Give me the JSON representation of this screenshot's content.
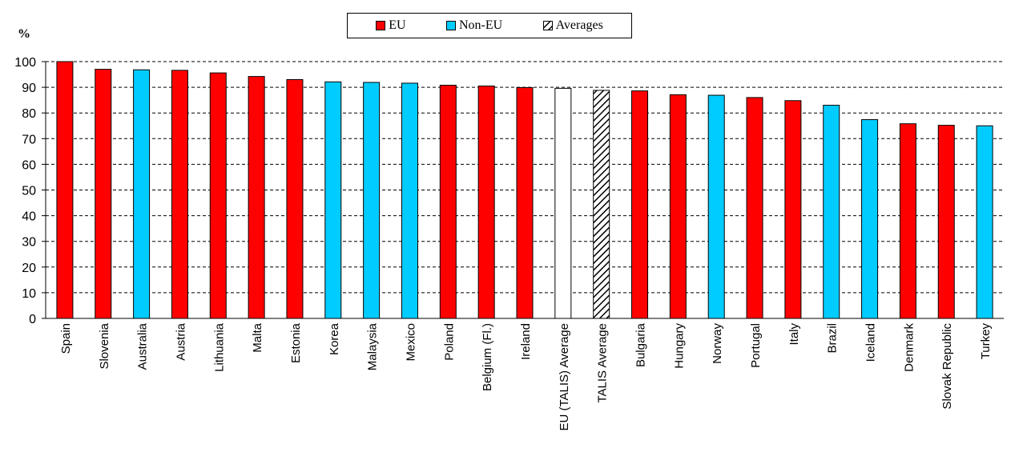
{
  "legend": {
    "eu_label": "EU",
    "noneu_label": "Non-EU",
    "avg_label": "Averages"
  },
  "colors": {
    "eu": "#ff0000",
    "noneu": "#00ccff",
    "avg_eu": "#ffffff",
    "avg_talis": "hatched-black"
  },
  "chart_data": {
    "type": "bar",
    "title": "",
    "xlabel": "",
    "ylabel": "%",
    "ylim": [
      0,
      100
    ],
    "yticks": [
      0,
      10,
      20,
      30,
      40,
      50,
      60,
      70,
      80,
      90,
      100
    ],
    "grid": "horizontal dashed",
    "legend_placement": "top-center",
    "categories": [
      "Spain",
      "Slovenia",
      "Australia",
      "Austria",
      "Lithuania",
      "Malta",
      "Estonia",
      "Korea",
      "Malaysia",
      "Mexico",
      "Poland",
      "Belgium (Fl.)",
      "Ireland",
      "EU (TALIS) Average",
      "TALIS Average",
      "Bulgaria",
      "Hungary",
      "Norway",
      "Portugal",
      "Italy",
      "Brazil",
      "Iceland",
      "Denmark",
      "Slovak Republic",
      "Turkey"
    ],
    "values": [
      100,
      97,
      96.8,
      96.6,
      95.6,
      94.2,
      93,
      92.1,
      91.9,
      91.6,
      90.8,
      90.5,
      89.9,
      89.6,
      88.8,
      88.6,
      87.1,
      86.9,
      86,
      84.8,
      83,
      77.4,
      75.8,
      75.2,
      75
    ],
    "groups": [
      "EU",
      "EU",
      "Non-EU",
      "EU",
      "EU",
      "EU",
      "EU",
      "Non-EU",
      "Non-EU",
      "Non-EU",
      "EU",
      "EU",
      "EU",
      "Averages",
      "Averages",
      "EU",
      "EU",
      "Non-EU",
      "EU",
      "EU",
      "Non-EU",
      "Non-EU",
      "EU",
      "EU",
      "Non-EU"
    ]
  }
}
